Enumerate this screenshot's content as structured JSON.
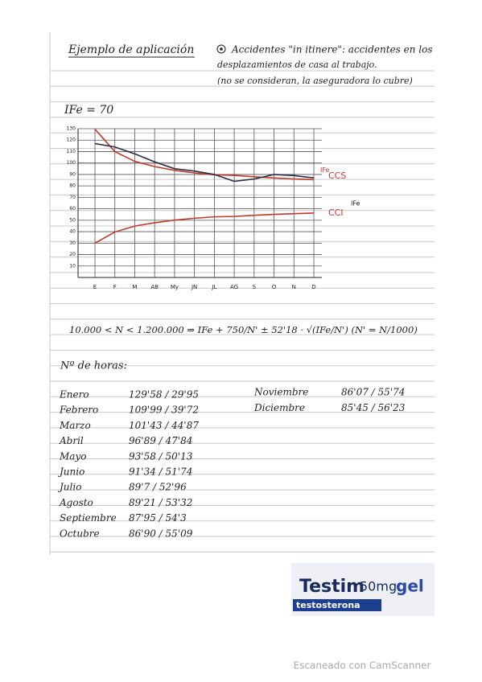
{
  "header": {
    "title": "Ejemplo de aplicación",
    "note_lines": [
      "Accidentes \"in itinere\": accidentes en los",
      "desplazamientos de casa al trabajo.",
      "(no se consideran, la aseguradora lo cubre)"
    ]
  },
  "ife_label": "IFe = 70",
  "chart_data": {
    "type": "line",
    "categories": [
      "E",
      "F",
      "M",
      "AB",
      "My",
      "JN",
      "JL",
      "AG",
      "S",
      "O",
      "N",
      "D"
    ],
    "series": [
      {
        "name": "IFe",
        "color": "#c0392b",
        "values": [
          129.58,
          109.99,
          101.43,
          96.89,
          93.58,
          91.34,
          89.7,
          89.21,
          87.95,
          86.9,
          86.07,
          85.45
        ]
      },
      {
        "name": "CCS",
        "color": "#2c2c44",
        "values": [
          117,
          114,
          108,
          101,
          95,
          93,
          90,
          84,
          86,
          90,
          89,
          87
        ]
      },
      {
        "name": "CCI",
        "color": "#c0392b",
        "values": [
          29.95,
          39.72,
          44.87,
          47.84,
          50.13,
          51.74,
          52.96,
          53.32,
          54.3,
          55.09,
          55.74,
          56.23
        ]
      }
    ],
    "annotation": "IFe",
    "ylim": [
      0,
      130
    ],
    "yticks": [
      10,
      20,
      30,
      40,
      50,
      60,
      70,
      80,
      90,
      100,
      110,
      120,
      130
    ],
    "grid": true
  },
  "formula": "10.000 < N < 1.200.000  ⇒  IFe + 750/N' ± 52'18 · √(IFe/N')     (N' = N/1000)",
  "hours_title": "Nº de horas:",
  "hours": [
    {
      "month": "Enero",
      "values": "129'58 / 29'95"
    },
    {
      "month": "Febrero",
      "values": "109'99 / 39'72"
    },
    {
      "month": "Marzo",
      "values": "101'43 / 44'87"
    },
    {
      "month": "Abril",
      "values": "96'89 / 47'84"
    },
    {
      "month": "Mayo",
      "values": "93'58 / 50'13"
    },
    {
      "month": "Junio",
      "values": "91'34 / 51'74"
    },
    {
      "month": "Julio",
      "values": "89'7 / 52'96"
    },
    {
      "month": "Agosto",
      "values": "89'21 / 53'32"
    },
    {
      "month": "Septiembre",
      "values": "87'95 / 54'3"
    },
    {
      "month": "Octubre",
      "values": "86'90 / 55'09"
    },
    {
      "month": "Noviembre",
      "values": "86'07 / 55'74"
    },
    {
      "month": "Diciembre",
      "values": "85'45 / 56'23"
    }
  ],
  "brand": {
    "name": "Testim",
    "dose": "50mg",
    "form": "gel",
    "subtitle": "testosterona"
  },
  "footer": "Escaneado con CamScanner"
}
